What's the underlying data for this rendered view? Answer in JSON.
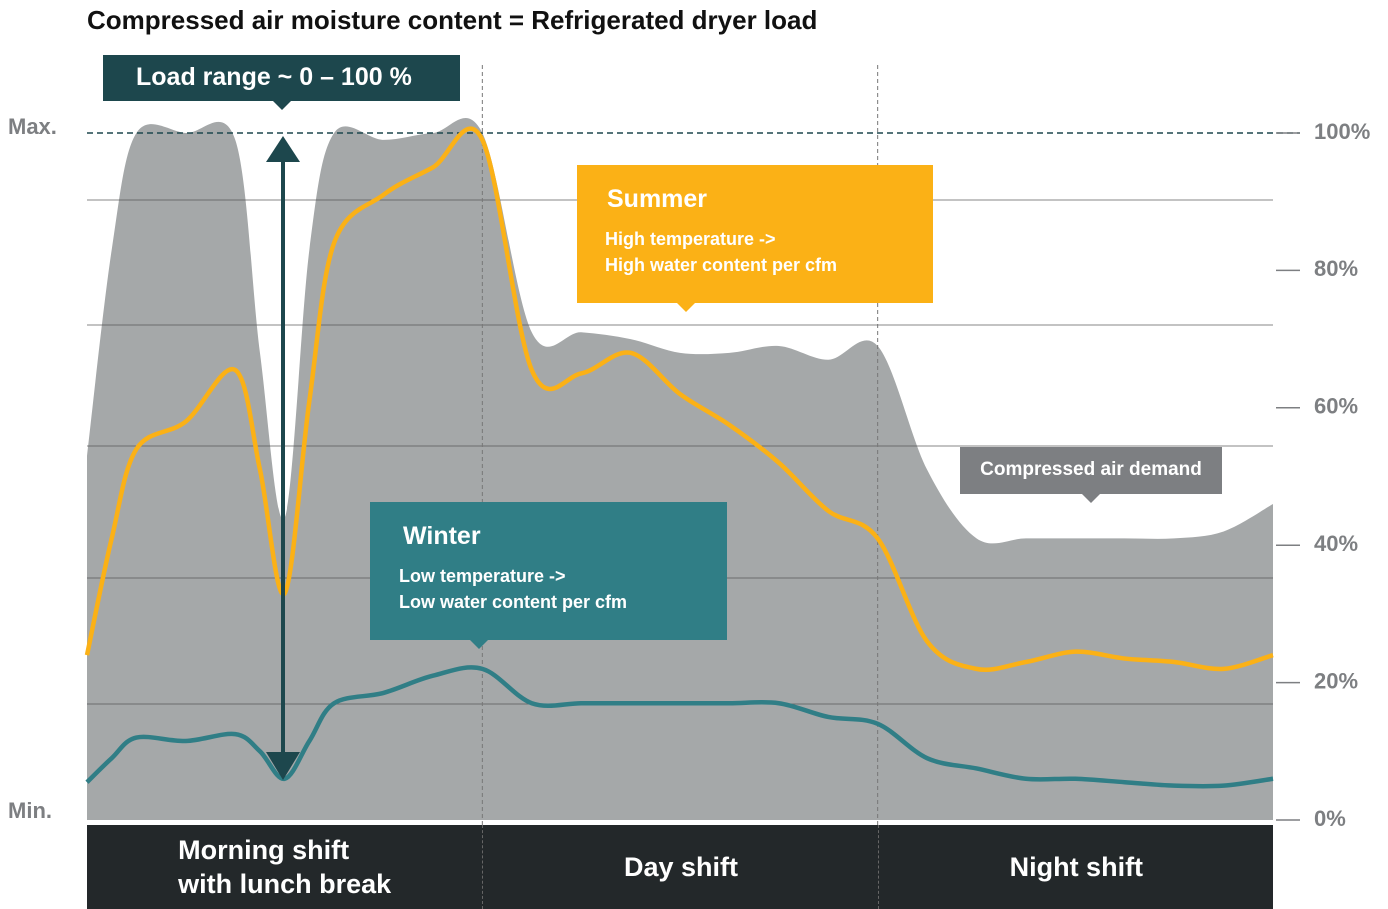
{
  "chart_data": {
    "type": "line",
    "title": "Compressed air moisture content = Refrigerated dryer load",
    "annotations": {
      "load_range": "Load range ~ 0 – 100 %",
      "max_label": "Max.",
      "min_label": "Min.",
      "summer_text": [
        "High temperature ->",
        "High water content per cfm"
      ],
      "winter_text": [
        "Low temperature ->",
        "Low water content per cfm"
      ]
    },
    "categories": [
      "Morning shift\nwith lunch break",
      "Day shift",
      "Night shift"
    ],
    "x": [
      0,
      0.5,
      1,
      2,
      3,
      3.5,
      4,
      4.5,
      5,
      6,
      7,
      8,
      9,
      10,
      11,
      12,
      13,
      14,
      15,
      16,
      17,
      18,
      19,
      20,
      21,
      22,
      23,
      24
    ],
    "xlim": [
      0,
      24
    ],
    "series": [
      {
        "name": "Compressed air demand",
        "kind": "area",
        "color": "#a5a8a9",
        "values": [
          53,
          83,
          100,
          100,
          99,
          68,
          44,
          83,
          100,
          99,
          100,
          100,
          71,
          71,
          70,
          68,
          68,
          69,
          67,
          69,
          51,
          41,
          41,
          41,
          41,
          41,
          42,
          46
        ]
      },
      {
        "name": "Summer",
        "kind": "line",
        "color": "#fbb116",
        "values": [
          24,
          41,
          54,
          58,
          65.5,
          51,
          33,
          61,
          84,
          91,
          95,
          99,
          65.5,
          65,
          68,
          62,
          57.5,
          52,
          45,
          41,
          26,
          22,
          23,
          24.5,
          23.5,
          23,
          22,
          24
        ]
      },
      {
        "name": "Winter",
        "kind": "line",
        "color": "#307e86",
        "values": [
          5.5,
          9,
          12,
          11.5,
          12.5,
          10,
          6,
          11.5,
          17,
          18.5,
          21,
          22,
          17,
          17,
          17,
          17,
          17,
          17,
          15,
          14,
          9,
          7.5,
          6,
          6,
          5.5,
          5,
          5,
          6
        ]
      }
    ],
    "ylim": [
      0,
      100
    ],
    "yticks": [
      {
        "value": 0,
        "label": "0%"
      },
      {
        "value": 20,
        "label": "20%"
      },
      {
        "value": 40,
        "label": "40%"
      },
      {
        "value": 60,
        "label": "60%"
      },
      {
        "value": 80,
        "label": "80%"
      },
      {
        "value": 100,
        "label": "100%"
      }
    ]
  }
}
